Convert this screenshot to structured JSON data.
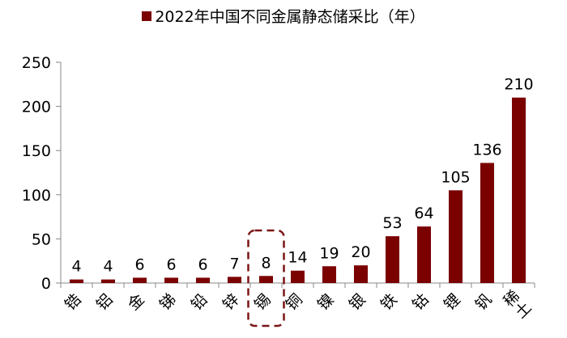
{
  "chart_data": {
    "type": "bar",
    "categories": [
      "锆",
      "铝",
      "金",
      "锑",
      "铅",
      "锌",
      "锡",
      "铜",
      "镍",
      "银",
      "铁",
      "钴",
      "锂",
      "钒",
      "稀土"
    ],
    "series": [
      {
        "name": "2022年中国不同金属静态储采比（年）",
        "values": [
          4,
          4,
          6,
          6,
          6,
          7,
          8,
          14,
          19,
          20,
          53,
          64,
          105,
          136,
          210
        ]
      }
    ],
    "data_labels": [
      "4",
      "4",
      "6",
      "6",
      "6",
      "7",
      "8",
      "14",
      "19",
      "20",
      "53",
      "64",
      "105",
      "136",
      "210"
    ],
    "ylim": [
      0,
      250
    ],
    "yticks": [
      "0",
      "50",
      "100",
      "150",
      "200",
      "250"
    ],
    "highlight_category": "锡",
    "grid": false,
    "legend_position": "top-center",
    "xlabel": "",
    "ylabel": "",
    "colors": {
      "bar": "#7B0000",
      "highlight_box": "#7B1515"
    }
  }
}
